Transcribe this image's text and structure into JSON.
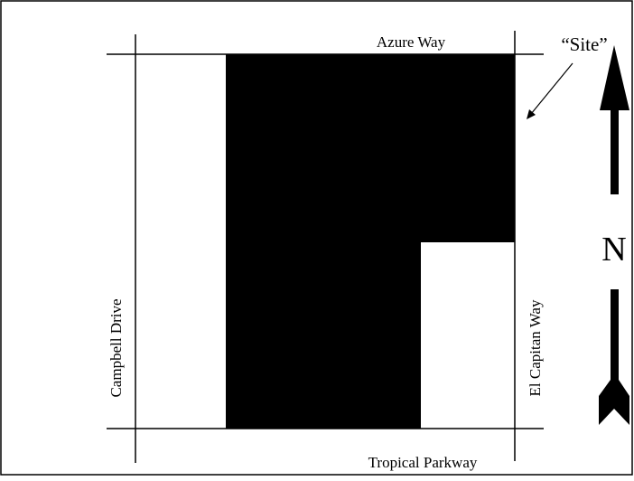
{
  "streets": {
    "north": "Azure Way",
    "south": "Tropical Parkway",
    "west": "Campbell Drive",
    "east": "El Capitan Way"
  },
  "site_label": "“Site”",
  "north_label": "N"
}
